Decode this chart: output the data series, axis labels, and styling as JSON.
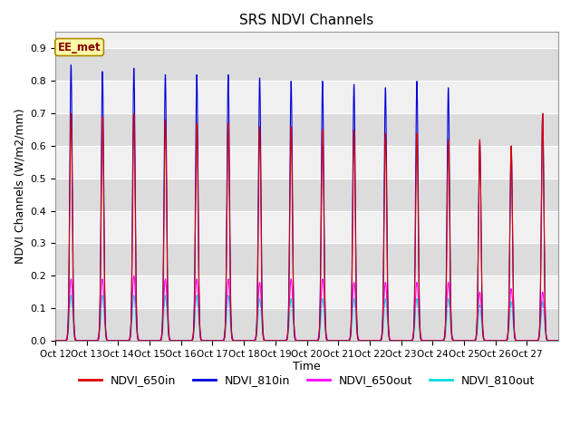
{
  "title": "SRS NDVI Channels",
  "ylabel": "NDVI Channels (W/m2/mm)",
  "xlabel": "Time",
  "ylim": [
    0.0,
    0.95
  ],
  "yticks": [
    0.0,
    0.1,
    0.2,
    0.3,
    0.4,
    0.5,
    0.6,
    0.7,
    0.8,
    0.9
  ],
  "annotation": "EE_met",
  "colors": {
    "NDVI_650in": "#dd0000",
    "NDVI_810in": "#0000dd",
    "NDVI_650out": "#ff00ff",
    "NDVI_810out": "#00dddd"
  },
  "background_color": "#e8e8e8",
  "num_days": 16,
  "start_day": 12,
  "peak_650in": [
    0.7,
    0.69,
    0.7,
    0.68,
    0.67,
    0.67,
    0.66,
    0.66,
    0.65,
    0.65,
    0.64,
    0.64,
    0.62,
    0.62,
    0.6,
    0.7
  ],
  "peak_810in": [
    0.85,
    0.83,
    0.84,
    0.82,
    0.82,
    0.82,
    0.81,
    0.8,
    0.8,
    0.79,
    0.78,
    0.8,
    0.78,
    0.61,
    0.6,
    0.7
  ],
  "peak_650out": [
    0.19,
    0.19,
    0.2,
    0.19,
    0.19,
    0.19,
    0.18,
    0.19,
    0.19,
    0.18,
    0.18,
    0.18,
    0.18,
    0.15,
    0.16,
    0.15
  ],
  "peak_810out": [
    0.14,
    0.14,
    0.14,
    0.14,
    0.14,
    0.14,
    0.13,
    0.13,
    0.13,
    0.13,
    0.13,
    0.13,
    0.13,
    0.11,
    0.12,
    0.12
  ],
  "tick_labels": [
    "Oct 12",
    "Oct 13",
    "Oct 14",
    "Oct 15",
    "Oct 16",
    "Oct 17",
    "Oct 18",
    "Oct 19",
    "Oct 20",
    "Oct 21",
    "Oct 22",
    "Oct 23",
    "Oct 24",
    "Oct 25",
    "Oct 26",
    "Oct 27"
  ],
  "linewidth_in": 0.8,
  "linewidth_out": 0.8
}
